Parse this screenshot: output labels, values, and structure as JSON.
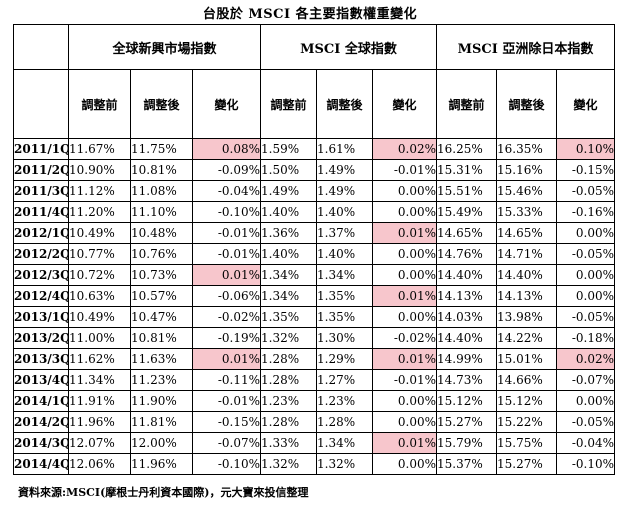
{
  "title": "台股於 MSCI 各主要指數權重變化",
  "groups": [
    "全球新興市場指數",
    "MSCI 全球指數",
    "MSCI 亞洲除日本指數"
  ],
  "subheaders": [
    "調整前",
    "調整後",
    "變化"
  ],
  "highlight_color": "#f7c6cc",
  "rows": [
    {
      "period": "2011/1Q",
      "v": [
        "11.67%",
        "11.75%",
        "0.08%",
        "1.59%",
        "1.61%",
        "0.02%",
        "16.25%",
        "16.35%",
        "0.10%"
      ],
      "hl": [
        2,
        5,
        8
      ]
    },
    {
      "period": "2011/2Q",
      "v": [
        "10.90%",
        "10.81%",
        "-0.09%",
        "1.50%",
        "1.49%",
        "-0.01%",
        "15.31%",
        "15.16%",
        "-0.15%"
      ],
      "hl": []
    },
    {
      "period": "2011/3Q",
      "v": [
        "11.12%",
        "11.08%",
        "-0.04%",
        "1.49%",
        "1.49%",
        "0.00%",
        "15.51%",
        "15.46%",
        "-0.05%"
      ],
      "hl": []
    },
    {
      "period": "2011/4Q",
      "v": [
        "11.20%",
        "11.10%",
        "-0.10%",
        "1.40%",
        "1.40%",
        "0.00%",
        "15.49%",
        "15.33%",
        "-0.16%"
      ],
      "hl": []
    },
    {
      "period": "2012/1Q",
      "v": [
        "10.49%",
        "10.48%",
        "-0.01%",
        "1.36%",
        "1.37%",
        "0.01%",
        "14.65%",
        "14.65%",
        "0.00%"
      ],
      "hl": [
        5
      ]
    },
    {
      "period": "2012/2Q",
      "v": [
        "10.77%",
        "10.76%",
        "-0.01%",
        "1.40%",
        "1.40%",
        "0.00%",
        "14.76%",
        "14.71%",
        "-0.05%"
      ],
      "hl": []
    },
    {
      "period": "2012/3Q",
      "v": [
        "10.72%",
        "10.73%",
        "0.01%",
        "1.34%",
        "1.34%",
        "0.00%",
        "14.40%",
        "14.40%",
        "0.00%"
      ],
      "hl": [
        2
      ]
    },
    {
      "period": "2012/4Q",
      "v": [
        "10.63%",
        "10.57%",
        "-0.06%",
        "1.34%",
        "1.35%",
        "0.01%",
        "14.13%",
        "14.13%",
        "0.00%"
      ],
      "hl": [
        5
      ]
    },
    {
      "period": "2013/1Q",
      "v": [
        "10.49%",
        "10.47%",
        "-0.02%",
        "1.35%",
        "1.35%",
        "0.00%",
        "14.03%",
        "13.98%",
        "-0.05%"
      ],
      "hl": []
    },
    {
      "period": "2013/2Q",
      "v": [
        "11.00%",
        "10.81%",
        "-0.19%",
        "1.32%",
        "1.30%",
        "-0.02%",
        "14.40%",
        "14.22%",
        "-0.18%"
      ],
      "hl": []
    },
    {
      "period": "2013/3Q",
      "v": [
        "11.62%",
        "11.63%",
        "0.01%",
        "1.28%",
        "1.29%",
        "0.01%",
        "14.99%",
        "15.01%",
        "0.02%"
      ],
      "hl": [
        2,
        5,
        8
      ]
    },
    {
      "period": "2013/4Q",
      "v": [
        "11.34%",
        "11.23%",
        "-0.11%",
        "1.28%",
        "1.27%",
        "-0.01%",
        "14.73%",
        "14.66%",
        "-0.07%"
      ],
      "hl": []
    },
    {
      "period": "2014/1Q",
      "v": [
        "11.91%",
        "11.90%",
        "-0.01%",
        "1.23%",
        "1.23%",
        "0.00%",
        "15.12%",
        "15.12%",
        "0.00%"
      ],
      "hl": []
    },
    {
      "period": "2014/2Q",
      "v": [
        "11.96%",
        "11.81%",
        "-0.15%",
        "1.28%",
        "1.28%",
        "0.00%",
        "15.27%",
        "15.22%",
        "-0.05%"
      ],
      "hl": []
    },
    {
      "period": "2014/3Q",
      "v": [
        "12.07%",
        "12.00%",
        "-0.07%",
        "1.33%",
        "1.34%",
        "0.01%",
        "15.79%",
        "15.75%",
        "-0.04%"
      ],
      "hl": [
        5
      ]
    },
    {
      "period": "2014/4Q",
      "v": [
        "12.06%",
        "11.96%",
        "-0.10%",
        "1.32%",
        "1.32%",
        "0.00%",
        "15.37%",
        "15.27%",
        "-0.10%"
      ],
      "hl": []
    }
  ],
  "source": "資料來源:MSCI(摩根士丹利資本國際)，元大寶來投信整理"
}
